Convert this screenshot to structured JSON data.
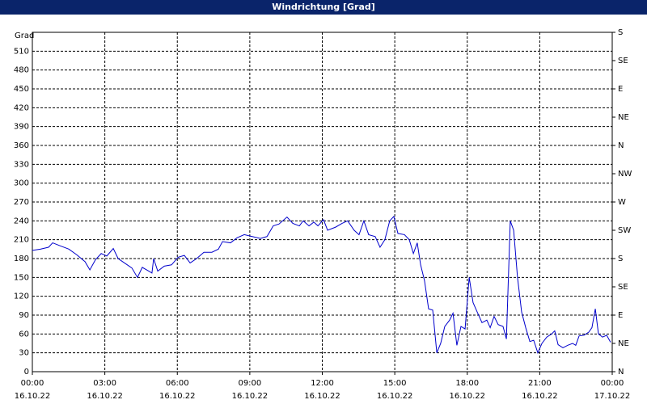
{
  "chart_data": {
    "type": "line",
    "title": "Windrichtung [Grad]",
    "ylabel": "Grad",
    "x": [
      0,
      0.33,
      0.67,
      0.84,
      1.17,
      1.51,
      1.84,
      2.18,
      2.38,
      2.61,
      2.85,
      3.08,
      3.35,
      3.55,
      3.85,
      4.12,
      4.35,
      4.55,
      4.82,
      4.95,
      5.02,
      5.19,
      5.46,
      5.76,
      6.03,
      6.29,
      6.53,
      6.8,
      7.1,
      7.43,
      7.7,
      7.87,
      8.2,
      8.47,
      8.77,
      9.1,
      9.44,
      9.71,
      9.97,
      10.21,
      10.54,
      10.78,
      11.05,
      11.21,
      11.45,
      11.65,
      11.82,
      12.05,
      12.22,
      12.55,
      12.82,
      13.05,
      13.32,
      13.52,
      13.72,
      13.92,
      14.19,
      14.39,
      14.59,
      14.79,
      14.96,
      15.13,
      15.4,
      15.6,
      15.77,
      15.93,
      16.07,
      16.23,
      16.4,
      16.57,
      16.74,
      16.9,
      17.07,
      17.27,
      17.41,
      17.57,
      17.74,
      17.91,
      18.08,
      18.24,
      18.41,
      18.61,
      18.81,
      18.95,
      19.11,
      19.28,
      19.48,
      19.62,
      19.78,
      19.92,
      20.08,
      20.25,
      20.42,
      20.59,
      20.75,
      20.92,
      21.09,
      21.29,
      21.49,
      21.62,
      21.76,
      21.96,
      22.16,
      22.36,
      22.49,
      22.63,
      22.83,
      23.03,
      23.16,
      23.3,
      23.43,
      23.6,
      23.77,
      23.93
    ],
    "series": [
      {
        "name": "Windrichtung",
        "color": "#0000cc",
        "values": [
          193,
          195,
          198,
          205,
          200,
          195,
          186,
          175,
          162,
          178,
          188,
          184,
          196,
          180,
          172,
          165,
          150,
          166,
          160,
          157,
          180,
          160,
          168,
          170,
          182,
          185,
          173,
          180,
          190,
          190,
          195,
          207,
          205,
          213,
          218,
          215,
          212,
          215,
          232,
          235,
          246,
          236,
          232,
          240,
          232,
          238,
          232,
          242,
          225,
          230,
          236,
          240,
          225,
          218,
          240,
          218,
          215,
          198,
          210,
          240,
          247,
          220,
          218,
          210,
          188,
          205,
          170,
          145,
          100,
          98,
          30,
          45,
          72,
          82,
          93,
          42,
          72,
          68,
          150,
          110,
          95,
          78,
          82,
          70,
          88,
          75,
          72,
          52,
          240,
          225,
          150,
          95,
          70,
          48,
          50,
          30,
          45,
          55,
          60,
          65,
          43,
          38,
          42,
          45,
          42,
          57,
          58,
          63,
          70,
          100,
          60,
          55,
          58,
          47
        ]
      }
    ],
    "xlim": [
      0,
      24
    ],
    "xticks": [
      {
        "value": 0,
        "label": "00:00",
        "date": "16.10.22"
      },
      {
        "value": 3,
        "label": "03:00",
        "date": "16.10.22"
      },
      {
        "value": 6,
        "label": "06:00",
        "date": "16.10.22"
      },
      {
        "value": 9,
        "label": "09:00",
        "date": "16.10.22"
      },
      {
        "value": 12,
        "label": "12:00",
        "date": "16.10.22"
      },
      {
        "value": 15,
        "label": "15:00",
        "date": "16.10.22"
      },
      {
        "value": 18,
        "label": "18:00",
        "date": "16.10.22"
      },
      {
        "value": 21,
        "label": "21:00",
        "date": "16.10.22"
      },
      {
        "value": 24,
        "label": "00:00",
        "date": "17.10.22"
      }
    ],
    "ylim": [
      0,
      540
    ],
    "yticks": [
      0,
      30,
      60,
      90,
      120,
      150,
      180,
      210,
      240,
      270,
      300,
      330,
      360,
      390,
      420,
      450,
      480,
      510
    ],
    "y2lim": [
      0,
      540
    ],
    "y2ticks": [
      {
        "value": 0,
        "label": "N"
      },
      {
        "value": 45,
        "label": "NE"
      },
      {
        "value": 90,
        "label": "E"
      },
      {
        "value": 135,
        "label": "SE"
      },
      {
        "value": 180,
        "label": "S"
      },
      {
        "value": 225,
        "label": "SW"
      },
      {
        "value": 270,
        "label": "W"
      },
      {
        "value": 315,
        "label": "NW"
      },
      {
        "value": 360,
        "label": "N"
      },
      {
        "value": 405,
        "label": "NE"
      },
      {
        "value": 450,
        "label": "E"
      },
      {
        "value": 495,
        "label": "SE"
      },
      {
        "value": 540,
        "label": "S"
      }
    ],
    "grid": true
  }
}
